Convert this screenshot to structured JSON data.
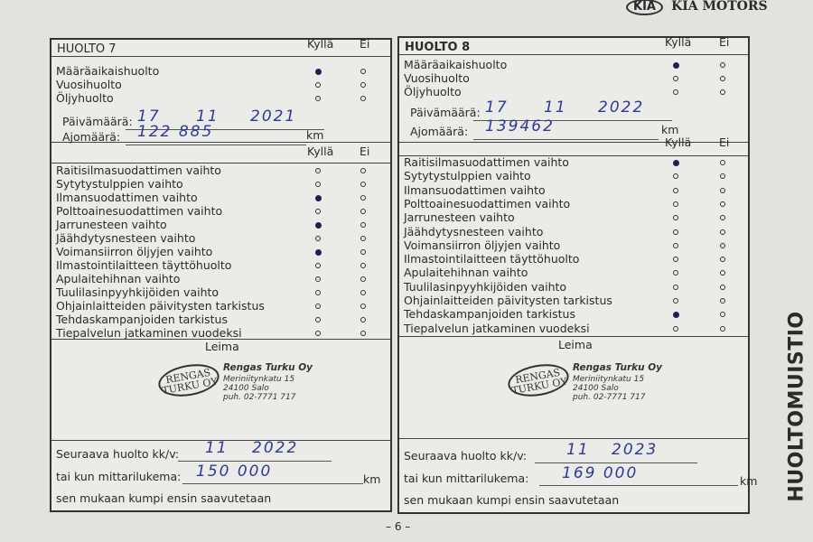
{
  "header": {
    "brand": "KIA MOTORS",
    "logo": "KIA"
  },
  "side_title": "HUOLTOMUISTIO",
  "page_number": "– 6 –",
  "col_yes": "Kyllä",
  "col_no": "Ei",
  "labels": {
    "date": "Päivämäärä:",
    "mileage": "Ajomäärä:",
    "km": "km",
    "stamp": "Leima",
    "next_service": "Seuraava huolto kk/v:",
    "or_mileage": "tai kun mittarilukema:",
    "whichever": "sen mukaan kumpi ensin saavutetaan"
  },
  "services": [
    {
      "title": "HUOLTO 7",
      "types": [
        {
          "label": "Määräaikaishuolto",
          "yes": true
        },
        {
          "label": "Vuosihuolto",
          "yes": false
        },
        {
          "label": "Öljyhuolto",
          "yes": false
        }
      ],
      "date": {
        "day": "17",
        "month": "11",
        "year": "2021"
      },
      "mileage": "122 885",
      "items": [
        {
          "label": "Raitisilmasuodattimen vaihto",
          "yes": false
        },
        {
          "label": "Sytytystulppien vaihto",
          "yes": false
        },
        {
          "label": "Ilmansuodattimen vaihto",
          "yes": true
        },
        {
          "label": "Polttoainesuodattimen vaihto",
          "yes": false
        },
        {
          "label": "Jarrunesteen vaihto",
          "yes": true
        },
        {
          "label": "Jäähdytysnesteen vaihto",
          "yes": false
        },
        {
          "label": "Voimansiirron öljyjen vaihto",
          "yes": true
        },
        {
          "label": "Ilmastointilaitteen täyttöhuolto",
          "yes": false
        },
        {
          "label": "Apulaitehihnan vaihto",
          "yes": false
        },
        {
          "label": "Tuulilasinpyyhkijöiden vaihto",
          "yes": false
        },
        {
          "label": "Ohjainlaitteiden päivitysten tarkistus",
          "yes": false
        },
        {
          "label": "Tehdaskampanjoiden tarkistus",
          "yes": false
        },
        {
          "label": "Tiepalvelun jatkaminen vuodeksi",
          "yes": false
        }
      ],
      "stamp": {
        "oval": "RENGAS TURKU OY",
        "name": "Rengas Turku Oy",
        "street": "Meriniitynkatu 15",
        "city": "24100 Salo",
        "phone": "puh. 02-7771 717"
      },
      "next": {
        "month": "11",
        "year": "2022",
        "mileage": "150 000"
      }
    },
    {
      "title": "HUOLTO 8",
      "types": [
        {
          "label": "Määräaikaishuolto",
          "yes": true
        },
        {
          "label": "Vuosihuolto",
          "yes": false
        },
        {
          "label": "Öljyhuolto",
          "yes": false
        }
      ],
      "date": {
        "day": "17",
        "month": "11",
        "year": "2022"
      },
      "mileage": "139462",
      "items": [
        {
          "label": "Raitisilmasuodattimen vaihto",
          "yes": true
        },
        {
          "label": "Sytytystulppien vaihto",
          "yes": false
        },
        {
          "label": "Ilmansuodattimen vaihto",
          "yes": false
        },
        {
          "label": "Polttoainesuodattimen vaihto",
          "yes": false
        },
        {
          "label": "Jarrunesteen vaihto",
          "yes": false
        },
        {
          "label": "Jäähdytysnesteen vaihto",
          "yes": false
        },
        {
          "label": "Voimansiirron öljyjen vaihto",
          "yes": false
        },
        {
          "label": "Ilmastointilaitteen täyttöhuolto",
          "yes": false
        },
        {
          "label": "Apulaitehihnan vaihto",
          "yes": false
        },
        {
          "label": "Tuulilasinpyyhkijöiden vaihto",
          "yes": false
        },
        {
          "label": "Ohjainlaitteiden päivitysten tarkistus",
          "yes": false
        },
        {
          "label": "Tehdaskampanjoiden tarkistus",
          "yes": true
        },
        {
          "label": "Tiepalvelun jatkaminen vuodeksi",
          "yes": false
        }
      ],
      "stamp": {
        "oval": "RENGAS TURKU OY",
        "name": "Rengas Turku Oy",
        "street": "Meriniitynkatu 15",
        "city": "24100 Salo",
        "phone": "puh. 02-7771 717"
      },
      "next": {
        "month": "11",
        "year": "2023",
        "mileage": "169 000"
      }
    }
  ]
}
